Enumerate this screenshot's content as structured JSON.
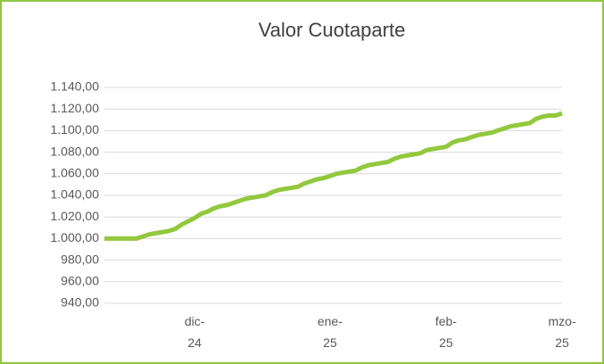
{
  "chart_data": {
    "type": "line",
    "title": "Valor Cuotaparte",
    "categories": [
      null,
      null,
      null,
      null,
      null,
      null,
      null,
      null,
      null,
      null,
      null,
      null,
      null,
      null,
      "dic-24",
      null,
      null,
      null,
      null,
      null,
      null,
      null,
      null,
      null,
      null,
      null,
      null,
      null,
      null,
      null,
      null,
      null,
      null,
      null,
      null,
      "ene-25",
      null,
      null,
      null,
      null,
      null,
      null,
      null,
      null,
      null,
      null,
      null,
      null,
      null,
      null,
      null,
      null,
      null,
      "feb-25",
      null,
      null,
      null,
      null,
      null,
      null,
      null,
      null,
      null,
      null,
      null,
      null,
      null,
      null,
      null,
      null,
      null,
      "mzo-25"
    ],
    "series": [
      {
        "name": "Valor Cuotaparte",
        "color": "#92c83e",
        "values": [
          1000,
          1000,
          1000,
          1000,
          1000,
          1000,
          1002,
          1004,
          1005,
          1006,
          1007,
          1009,
          1013,
          1016,
          1019,
          1023,
          1025,
          1028,
          1030,
          1031,
          1033,
          1035,
          1037,
          1038,
          1039,
          1040,
          1043,
          1045,
          1046,
          1047,
          1048,
          1051,
          1053,
          1055,
          1056,
          1058,
          1060,
          1061,
          1062,
          1063,
          1066,
          1068,
          1069,
          1070,
          1071,
          1074,
          1076,
          1077,
          1078,
          1079,
          1082,
          1083,
          1084,
          1085,
          1089,
          1091,
          1092,
          1094,
          1096,
          1097,
          1098,
          1100,
          1102,
          1104,
          1105,
          1106,
          1107,
          1111,
          1113,
          1114,
          1114,
          1116
        ]
      }
    ],
    "ylim": [
      940,
      1140
    ],
    "yticks": [
      {
        "value": 940,
        "label": "940,00"
      },
      {
        "value": 960,
        "label": "960,00"
      },
      {
        "value": 980,
        "label": "980,00"
      },
      {
        "value": 1000,
        "label": "1.000,00"
      },
      {
        "value": 1020,
        "label": "1.020,00"
      },
      {
        "value": 1040,
        "label": "1.040,00"
      },
      {
        "value": 1060,
        "label": "1.060,00"
      },
      {
        "value": 1080,
        "label": "1.080,00"
      },
      {
        "value": 1100,
        "label": "1.100,00"
      },
      {
        "value": 1120,
        "label": "1.120,00"
      },
      {
        "value": 1140,
        "label": "1.140,00"
      }
    ],
    "grid": true
  }
}
